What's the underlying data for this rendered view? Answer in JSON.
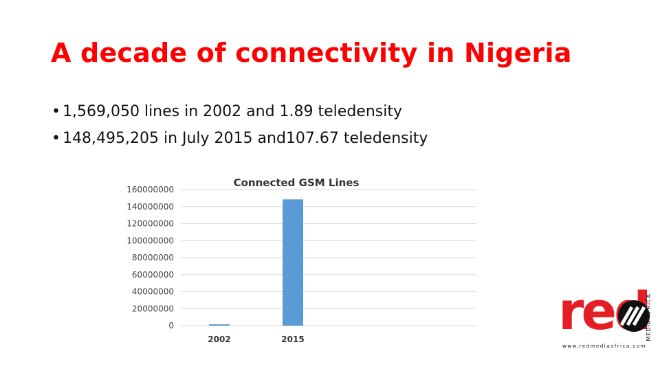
{
  "slide": {
    "title": "A decade of connectivity in Nigeria",
    "bullets": [
      "1,569,050 lines in 2002 and 1.89 teledensity",
      "148,495,205 in July 2015 and107.67 teledensity"
    ],
    "bullet_symbol": "•"
  },
  "chart_data": {
    "type": "bar",
    "title": "Connected GSM Lines",
    "categories": [
      "2002",
      "2015"
    ],
    "values": [
      1569050,
      148495205
    ],
    "ylim": [
      0,
      160000000
    ],
    "yticks": [
      "0",
      "20000000",
      "40000000",
      "60000000",
      "80000000",
      "100000000",
      "120000000",
      "140000000",
      "160000000"
    ],
    "xlabel": "",
    "ylabel": "",
    "grid": true,
    "legend": "none",
    "bar_color": "#5b9bd5",
    "grid_color": "#d9d9d9"
  },
  "logo": {
    "word": "red",
    "side_text": "MEDIA AFRICA",
    "url": "www.redmediaafrica.com",
    "brand_color": "#e31e24"
  }
}
